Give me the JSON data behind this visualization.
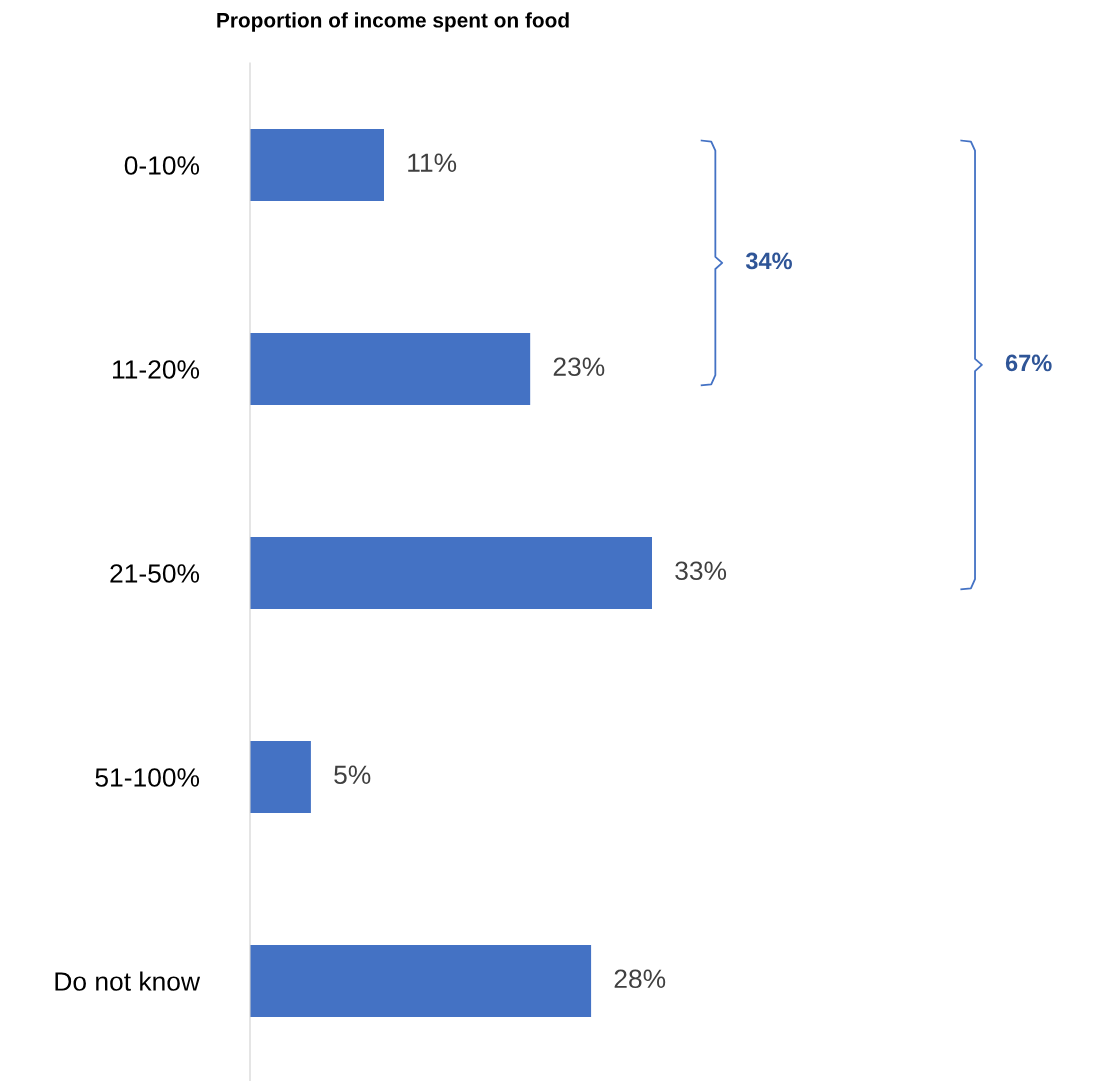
{
  "chart_data": {
    "type": "bar",
    "orientation": "horizontal",
    "title": "Proportion of income spent on food",
    "categories": [
      "0-10%",
      "11-20%",
      "21-50%",
      "51-100%",
      "Do not know"
    ],
    "values": [
      11,
      23,
      33,
      5,
      28
    ],
    "value_labels": [
      "11%",
      "23%",
      "33%",
      "5%",
      "28%"
    ],
    "color": "#4472c4",
    "annotations": [
      "34%",
      "67%"
    ],
    "grid": false,
    "legend": false
  }
}
